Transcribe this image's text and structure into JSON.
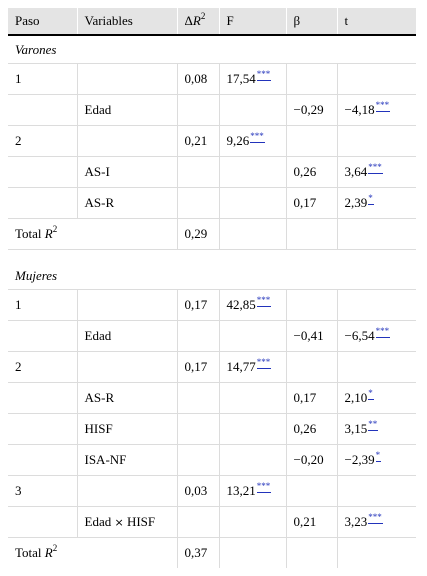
{
  "header": {
    "paso": "Paso",
    "variables": "Variables",
    "delta_r2": "ΔR",
    "delta_r2_sup": "2",
    "f": "F",
    "beta": "β",
    "t": "t"
  },
  "sections": {
    "varones": "Varones",
    "mujeres": "Mujeres"
  },
  "rows": {
    "v1": {
      "paso": "1",
      "var": "",
      "dr2": "0,08",
      "f": "17,54",
      "f_sig": "***",
      "beta": "",
      "t": "",
      "t_sig": ""
    },
    "v2": {
      "paso": "",
      "var": "Edad",
      "dr2": "",
      "f": "",
      "f_sig": "",
      "beta": "−0,29",
      "t": "−4,18",
      "t_sig": "***"
    },
    "v3": {
      "paso": "2",
      "var": "",
      "dr2": "0,21",
      "f": "9,26",
      "f_sig": "***",
      "beta": "",
      "t": "",
      "t_sig": ""
    },
    "v4": {
      "paso": "",
      "var": "AS-I",
      "dr2": "",
      "f": "",
      "f_sig": "",
      "beta": "0,26",
      "t": "3,64",
      "t_sig": "***"
    },
    "v5": {
      "paso": "",
      "var": "AS-R",
      "dr2": "",
      "f": "",
      "f_sig": "",
      "beta": "0,17",
      "t": "2,39",
      "t_sig": "*"
    },
    "vt": {
      "label": "Total R",
      "sup": "2",
      "dr2": "0,29"
    },
    "m1": {
      "paso": "1",
      "var": "",
      "dr2": "0,17",
      "f": "42,85",
      "f_sig": "***",
      "beta": "",
      "t": "",
      "t_sig": ""
    },
    "m2": {
      "paso": "",
      "var": "Edad",
      "dr2": "",
      "f": "",
      "f_sig": "",
      "beta": "−0,41",
      "t": "−6,54",
      "t_sig": "***"
    },
    "m3": {
      "paso": "2",
      "var": "",
      "dr2": "0,17",
      "f": "14,77",
      "f_sig": "***",
      "beta": "",
      "t": "",
      "t_sig": ""
    },
    "m4": {
      "paso": "",
      "var": "AS-R",
      "dr2": "",
      "f": "",
      "f_sig": "",
      "beta": "0,17",
      "t": "2,10",
      "t_sig": "*"
    },
    "m5": {
      "paso": "",
      "var": "HISF",
      "dr2": "",
      "f": "",
      "f_sig": "",
      "beta": "0,26",
      "t": "3,15",
      "t_sig": "**"
    },
    "m6": {
      "paso": "",
      "var": "ISA-NF",
      "dr2": "",
      "f": "",
      "f_sig": "",
      "beta": "−0,20",
      "t": "−2,39",
      "t_sig": "*"
    },
    "m7": {
      "paso": "3",
      "var": "",
      "dr2": "0,03",
      "f": "13,21",
      "f_sig": "***",
      "beta": "",
      "t": "",
      "t_sig": ""
    },
    "m8": {
      "paso": "",
      "var_a": "Edad",
      "var_x": "×",
      "var_b": "HISF",
      "dr2": "",
      "f": "",
      "f_sig": "",
      "beta": "0,21",
      "t": "3,23",
      "t_sig": "***"
    },
    "mt": {
      "label": "Total R",
      "sup": "2",
      "dr2": "0,37"
    }
  },
  "colors": {
    "header_bg": "#e4e4e4",
    "significance_link": "#2233bb",
    "row_border": "#dcdcdc"
  }
}
